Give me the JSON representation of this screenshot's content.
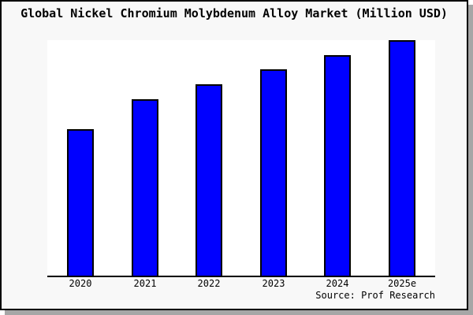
{
  "page": {
    "title": "Global Nickel Chromium Molybdenum Alloy Market (Million USD)",
    "source_label": "Source: Prof Research"
  },
  "colors": {
    "bar_fill": "#0000ff",
    "bar_border": "#000000",
    "axis": "#000000",
    "plot_bg": "#ffffff",
    "page_bg": "#f8f8f8",
    "frame": "#000000",
    "shadow": "#a6a6a6"
  },
  "chart_data": {
    "type": "bar",
    "title": "Global Nickel Chromium Molybdenum Alloy Market (Million USD)",
    "categories": [
      "2020",
      "2021",
      "2022",
      "2023",
      "2024",
      "2025e"
    ],
    "values": [
      62.3,
      75.0,
      81.3,
      87.7,
      93.7,
      100.0
    ],
    "value_note": "no y-axis labels shown; values estimated relative to 2025e = 100",
    "xlabel": "",
    "ylabel": "",
    "ylim": [
      0,
      100
    ],
    "grid": false,
    "legend": false,
    "source": "Source: Prof Research"
  }
}
